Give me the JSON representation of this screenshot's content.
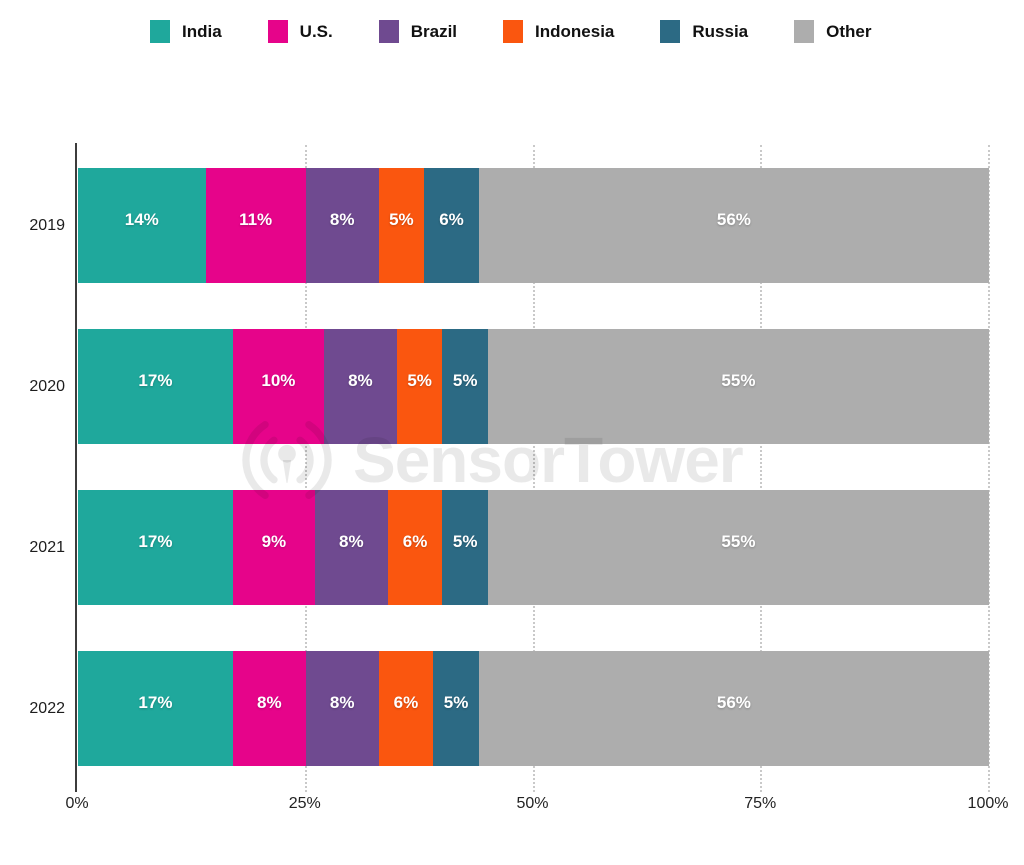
{
  "watermark": {
    "text": "SensorTower"
  },
  "chart_data": {
    "type": "bar",
    "stacked": true,
    "orientation": "horizontal",
    "title": "",
    "xlabel": "",
    "ylabel": "",
    "categories": [
      "2019",
      "2020",
      "2021",
      "2022"
    ],
    "series": [
      {
        "name": "India",
        "color": "#1FA89C",
        "values": [
          14,
          17,
          17,
          17
        ]
      },
      {
        "name": "U.S.",
        "color": "#E6048A",
        "values": [
          11,
          10,
          9,
          8
        ]
      },
      {
        "name": "Brazil",
        "color": "#6F4A90",
        "values": [
          8,
          8,
          8,
          8
        ]
      },
      {
        "name": "Indonesia",
        "color": "#FA560F",
        "values": [
          5,
          5,
          6,
          6
        ]
      },
      {
        "name": "Russia",
        "color": "#2C6A84",
        "values": [
          6,
          5,
          5,
          5
        ]
      },
      {
        "name": "Other",
        "color": "#ADADAD",
        "values": [
          56,
          55,
          55,
          56
        ]
      }
    ],
    "value_suffix": "%",
    "bar_labels": [
      [
        "14%",
        "11%",
        "8%",
        "5%",
        "6%",
        "56%"
      ],
      [
        "17%",
        "10%",
        "8%",
        "5%",
        "5%",
        "55%"
      ],
      [
        "17%",
        "9%",
        "8%",
        "6%",
        "5%",
        "55%"
      ],
      [
        "17%",
        "8%",
        "8%",
        "6%",
        "5%",
        "56%"
      ]
    ],
    "x_ticks": [
      {
        "label": "0%",
        "value": 0
      },
      {
        "label": "25%",
        "value": 25
      },
      {
        "label": "50%",
        "value": 50
      },
      {
        "label": "75%",
        "value": 75
      },
      {
        "label": "100%",
        "value": 100
      }
    ],
    "xlim": [
      0,
      100
    ],
    "grid": "vertical-dotted",
    "legend_position": "top",
    "bar_label_color": "#ffffff"
  }
}
